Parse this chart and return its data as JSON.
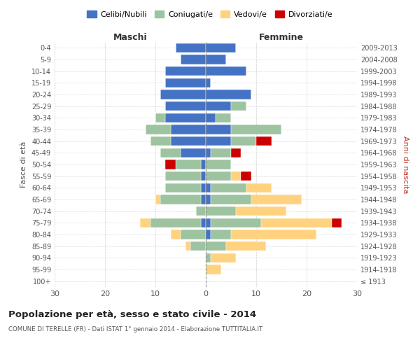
{
  "age_groups": [
    "100+",
    "95-99",
    "90-94",
    "85-89",
    "80-84",
    "75-79",
    "70-74",
    "65-69",
    "60-64",
    "55-59",
    "50-54",
    "45-49",
    "40-44",
    "35-39",
    "30-34",
    "25-29",
    "20-24",
    "15-19",
    "10-14",
    "5-9",
    "0-4"
  ],
  "birth_years": [
    "≤ 1913",
    "1914-1918",
    "1919-1923",
    "1924-1928",
    "1929-1933",
    "1934-1938",
    "1939-1943",
    "1944-1948",
    "1949-1953",
    "1954-1958",
    "1959-1963",
    "1964-1968",
    "1969-1973",
    "1974-1978",
    "1979-1983",
    "1984-1988",
    "1989-1993",
    "1994-1998",
    "1999-2003",
    "2004-2008",
    "2009-2013"
  ],
  "maschi": {
    "celibi": [
      0,
      0,
      0,
      0,
      0,
      1,
      0,
      1,
      1,
      1,
      1,
      5,
      7,
      7,
      8,
      8,
      9,
      8,
      8,
      5,
      6
    ],
    "coniugati": [
      0,
      0,
      0,
      3,
      5,
      10,
      2,
      8,
      7,
      7,
      5,
      4,
      4,
      5,
      2,
      0,
      0,
      0,
      0,
      0,
      0
    ],
    "vedovi": [
      0,
      0,
      0,
      1,
      2,
      2,
      0,
      1,
      0,
      0,
      0,
      0,
      0,
      0,
      0,
      0,
      0,
      0,
      0,
      0,
      0
    ],
    "divorziati": [
      0,
      0,
      0,
      0,
      0,
      0,
      0,
      0,
      0,
      0,
      2,
      0,
      0,
      0,
      0,
      0,
      0,
      0,
      0,
      0,
      0
    ]
  },
  "femmine": {
    "nubili": [
      0,
      0,
      0,
      0,
      1,
      1,
      0,
      1,
      1,
      0,
      0,
      1,
      5,
      5,
      2,
      5,
      9,
      1,
      8,
      4,
      6
    ],
    "coniugate": [
      0,
      0,
      1,
      4,
      4,
      10,
      6,
      8,
      7,
      5,
      5,
      4,
      5,
      10,
      3,
      3,
      0,
      0,
      0,
      0,
      0
    ],
    "vedove": [
      0,
      3,
      5,
      8,
      17,
      14,
      10,
      10,
      5,
      2,
      0,
      0,
      0,
      0,
      0,
      0,
      0,
      0,
      0,
      0,
      0
    ],
    "divorziate": [
      0,
      0,
      0,
      0,
      0,
      2,
      0,
      0,
      0,
      2,
      0,
      2,
      3,
      0,
      0,
      0,
      0,
      0,
      0,
      0,
      0
    ]
  },
  "colors": {
    "celibi_nubili": "#4472C4",
    "coniugati": "#9DC3A0",
    "vedovi": "#FFD27F",
    "divorziati": "#CC0000"
  },
  "xlim": 30,
  "title": "Popolazione per età, sesso e stato civile - 2014",
  "subtitle": "COMUNE DI TERELLE (FR) - Dati ISTAT 1° gennaio 2014 - Elaborazione TUTTITALIA.IT",
  "ylabel_left": "Fasce di età",
  "ylabel_right": "Anni di nascita",
  "xlabel_maschi": "Maschi",
  "xlabel_femmine": "Femmine",
  "legend_labels": [
    "Celibi/Nubili",
    "Coniugati/e",
    "Vedovi/e",
    "Divorziati/e"
  ],
  "background_color": "#ffffff",
  "grid_color": "#cccccc"
}
